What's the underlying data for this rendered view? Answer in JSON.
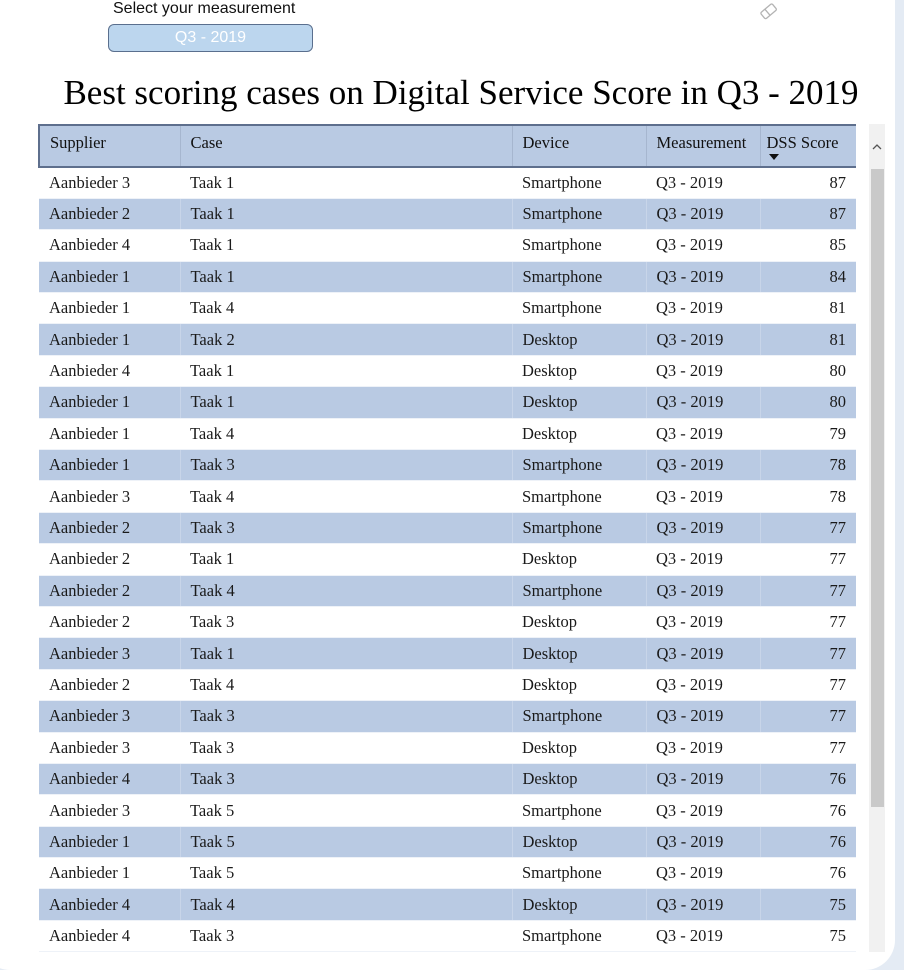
{
  "slicer": {
    "label": "Select your measurement",
    "selected_value": "Q3 - 2019"
  },
  "toolbar": {
    "clear_filter_icon": "eraser-icon"
  },
  "page": {
    "title": "Best scoring cases on Digital Service Score in Q3 - 2019"
  },
  "table": {
    "columns": [
      {
        "label": "Supplier"
      },
      {
        "label": "Case"
      },
      {
        "label": "Device"
      },
      {
        "label": "Measurement"
      },
      {
        "label": "DSS Score",
        "sorted": "descending"
      }
    ],
    "rows": [
      {
        "supplier": "Aanbieder 3",
        "case": "Taak 1",
        "device": "Smartphone",
        "measurement": "Q3 - 2019",
        "score": "87"
      },
      {
        "supplier": "Aanbieder 2",
        "case": "Taak 1",
        "device": "Smartphone",
        "measurement": "Q3 - 2019",
        "score": "87"
      },
      {
        "supplier": "Aanbieder 4",
        "case": "Taak 1",
        "device": "Smartphone",
        "measurement": "Q3 - 2019",
        "score": "85"
      },
      {
        "supplier": "Aanbieder 1",
        "case": "Taak 1",
        "device": "Smartphone",
        "measurement": "Q3 - 2019",
        "score": "84"
      },
      {
        "supplier": "Aanbieder 1",
        "case": "Taak 4",
        "device": "Smartphone",
        "measurement": "Q3 - 2019",
        "score": "81"
      },
      {
        "supplier": "Aanbieder 1",
        "case": "Taak 2",
        "device": "Desktop",
        "measurement": "Q3 - 2019",
        "score": "81"
      },
      {
        "supplier": "Aanbieder 4",
        "case": "Taak 1",
        "device": "Desktop",
        "measurement": "Q3 - 2019",
        "score": "80"
      },
      {
        "supplier": "Aanbieder 1",
        "case": "Taak 1",
        "device": "Desktop",
        "measurement": "Q3 - 2019",
        "score": "80"
      },
      {
        "supplier": "Aanbieder 1",
        "case": "Taak 4",
        "device": "Desktop",
        "measurement": "Q3 - 2019",
        "score": "79"
      },
      {
        "supplier": "Aanbieder 1",
        "case": "Taak 3",
        "device": "Smartphone",
        "measurement": "Q3 - 2019",
        "score": "78"
      },
      {
        "supplier": "Aanbieder 3",
        "case": "Taak 4",
        "device": "Smartphone",
        "measurement": "Q3 - 2019",
        "score": "78"
      },
      {
        "supplier": "Aanbieder 2",
        "case": "Taak 3",
        "device": "Smartphone",
        "measurement": "Q3 - 2019",
        "score": "77"
      },
      {
        "supplier": "Aanbieder 2",
        "case": "Taak 1",
        "device": "Desktop",
        "measurement": "Q3 - 2019",
        "score": "77"
      },
      {
        "supplier": "Aanbieder 2",
        "case": "Taak 4",
        "device": "Smartphone",
        "measurement": "Q3 - 2019",
        "score": "77"
      },
      {
        "supplier": "Aanbieder 2",
        "case": "Taak 3",
        "device": "Desktop",
        "measurement": "Q3 - 2019",
        "score": "77"
      },
      {
        "supplier": "Aanbieder 3",
        "case": "Taak 1",
        "device": "Desktop",
        "measurement": "Q3 - 2019",
        "score": "77"
      },
      {
        "supplier": "Aanbieder 2",
        "case": "Taak 4",
        "device": "Desktop",
        "measurement": "Q3 - 2019",
        "score": "77"
      },
      {
        "supplier": "Aanbieder 3",
        "case": "Taak 3",
        "device": "Smartphone",
        "measurement": "Q3 - 2019",
        "score": "77"
      },
      {
        "supplier": "Aanbieder 3",
        "case": "Taak 3",
        "device": "Desktop",
        "measurement": "Q3 - 2019",
        "score": "77"
      },
      {
        "supplier": "Aanbieder 4",
        "case": "Taak 3",
        "device": "Desktop",
        "measurement": "Q3 - 2019",
        "score": "76"
      },
      {
        "supplier": "Aanbieder 3",
        "case": "Taak 5",
        "device": "Smartphone",
        "measurement": "Q3 - 2019",
        "score": "76"
      },
      {
        "supplier": "Aanbieder 1",
        "case": "Taak 5",
        "device": "Desktop",
        "measurement": "Q3 - 2019",
        "score": "76"
      },
      {
        "supplier": "Aanbieder 1",
        "case": "Taak 5",
        "device": "Smartphone",
        "measurement": "Q3 - 2019",
        "score": "76"
      },
      {
        "supplier": "Aanbieder 4",
        "case": "Taak 4",
        "device": "Desktop",
        "measurement": "Q3 - 2019",
        "score": "75"
      },
      {
        "supplier": "Aanbieder 4",
        "case": "Taak 3",
        "device": "Smartphone",
        "measurement": "Q3 - 2019",
        "score": "75"
      }
    ]
  },
  "scrollbar": {
    "up_icon": "^"
  },
  "colors": {
    "header_bg": "#b9cae3",
    "band_bg": "#b9cae3",
    "header_border": "#5e6f8d",
    "slicer_bg": "#bcd6ee",
    "page_bg": "#e4ebf4"
  }
}
